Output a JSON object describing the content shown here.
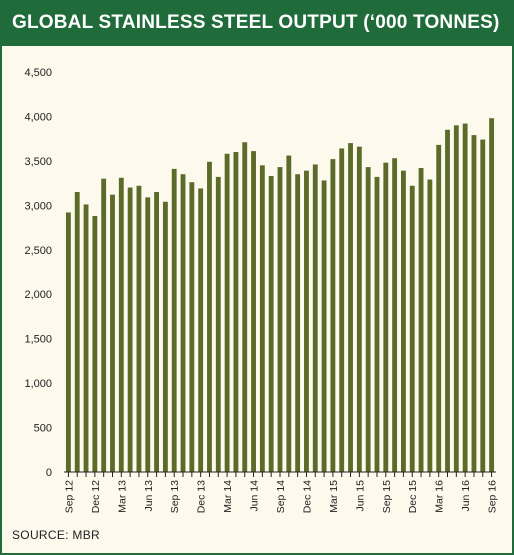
{
  "title": "GLOBAL STAINLESS STEEL OUTPUT (‘000 TONNES)",
  "source": "SOURCE: MBR",
  "colors": {
    "header": "#1f6b3a",
    "background": "#fdf9ec",
    "bar": "#5a6b2a"
  },
  "chart_data": {
    "type": "bar",
    "title": "GLOBAL STAINLESS STEEL OUTPUT (‘000 TONNES)",
    "xlabel": "",
    "ylabel": "",
    "ylim": [
      0,
      4500
    ],
    "yticks": [
      0,
      500,
      1000,
      1500,
      2000,
      2500,
      3000,
      3500,
      4000,
      4500
    ],
    "ytick_labels": [
      "0",
      "500",
      "1,000",
      "1,500",
      "2,000",
      "2,500",
      "3,000",
      "3,500",
      "4,000",
      "4,500"
    ],
    "grid": false,
    "categories": [
      "Sep 12",
      "Oct 12",
      "Nov 12",
      "Dec 12",
      "Jan 13",
      "Feb 13",
      "Mar 13",
      "Apr 13",
      "May 13",
      "Jun 13",
      "Jul 13",
      "Aug 13",
      "Sep 13",
      "Oct 13",
      "Nov 13",
      "Dec 13",
      "Jan 14",
      "Feb 14",
      "Mar 14",
      "Apr 14",
      "May 14",
      "Jun 14",
      "Jul 14",
      "Aug 14",
      "Sep 14",
      "Oct 14",
      "Nov 14",
      "Dec 14",
      "Jan 15",
      "Feb 15",
      "Mar 15",
      "Apr 15",
      "May 15",
      "Jun 15",
      "Jul 15",
      "Aug 15",
      "Sep 15",
      "Oct 15",
      "Nov 15",
      "Dec 15",
      "Jan 16",
      "Feb 16",
      "Mar 16",
      "Apr 16",
      "May 16",
      "Jun 16",
      "Jul 16",
      "Aug 16",
      "Sep 16"
    ],
    "labeled_ticks": [
      "Sep 12",
      "Dec 12",
      "Mar 13",
      "Jun 13",
      "Sep 13",
      "Dec 13",
      "Mar 14",
      "Jun 14",
      "Sep 14",
      "Dec 14",
      "Mar 15",
      "Jun 15",
      "Sep 15",
      "Dec 15",
      "Mar 16",
      "Jun 16",
      "Sep 16"
    ],
    "values": [
      2920,
      3150,
      3010,
      2880,
      3300,
      3120,
      3310,
      3200,
      3220,
      3090,
      3150,
      3040,
      3410,
      3350,
      3260,
      3190,
      3490,
      3320,
      3580,
      3600,
      3710,
      3610,
      3450,
      3330,
      3430,
      3560,
      3350,
      3390,
      3460,
      3280,
      3520,
      3640,
      3700,
      3660,
      3430,
      3320,
      3480,
      3530,
      3390,
      3220,
      3420,
      3290,
      3680,
      3850,
      3900,
      3920,
      3790,
      3740,
      3980
    ]
  }
}
